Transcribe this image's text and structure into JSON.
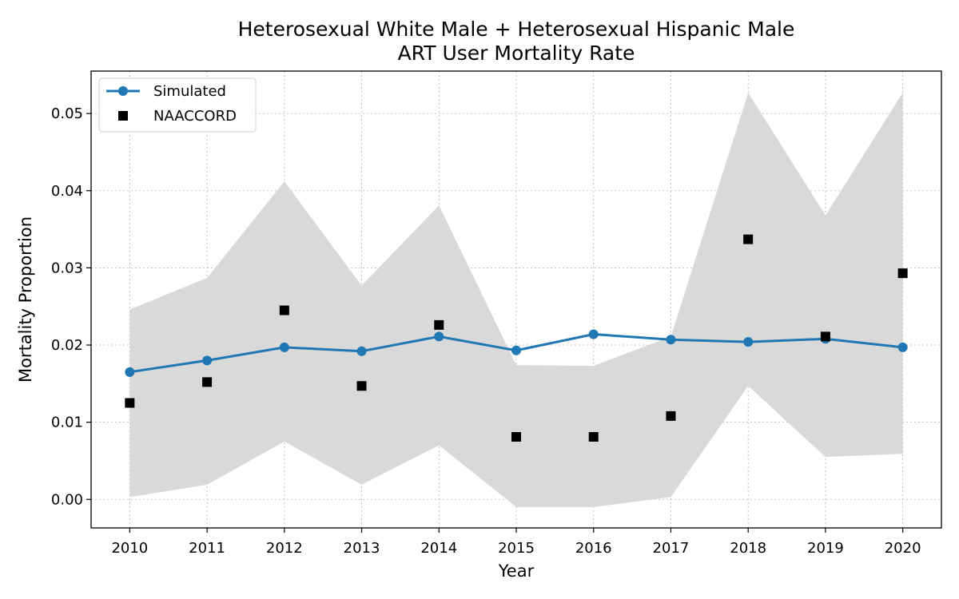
{
  "chart_data": {
    "type": "line",
    "title_line1": "Heterosexual White Male + Heterosexual Hispanic Male",
    "title_line2": "ART User Mortality Rate",
    "xlabel": "Year",
    "ylabel": "Mortality Proportion",
    "x": [
      2010,
      2011,
      2012,
      2013,
      2014,
      2015,
      2016,
      2017,
      2018,
      2019,
      2020
    ],
    "xlim": [
      2009.5,
      2020.5
    ],
    "ylim": [
      -0.0037,
      0.0555
    ],
    "y_ticks": [
      0.0,
      0.01,
      0.02,
      0.03,
      0.04,
      0.05
    ],
    "y_tick_labels": [
      "0.00",
      "0.01",
      "0.02",
      "0.03",
      "0.04",
      "0.05"
    ],
    "grid": true,
    "legend_position": "top-left",
    "series": [
      {
        "name": "Simulated",
        "kind": "line-marker",
        "color": "#1f77b4",
        "values": [
          0.0165,
          0.018,
          0.0197,
          0.0192,
          0.0211,
          0.0193,
          0.0214,
          0.0207,
          0.0204,
          0.0208,
          0.0197
        ],
        "band_lower": [
          0.0003,
          0.0019,
          0.0075,
          0.0019,
          0.007,
          -0.001,
          -0.001,
          0.0003,
          0.0147,
          0.0055,
          0.0059
        ],
        "band_upper": [
          0.0246,
          0.0287,
          0.0412,
          0.0277,
          0.0381,
          0.0174,
          0.0173,
          0.0211,
          0.0527,
          0.0368,
          0.0527
        ],
        "band_color": "#d9d9d9"
      },
      {
        "name": "NAACCORD",
        "kind": "marker",
        "color": "#000000",
        "values": [
          0.0125,
          0.0152,
          0.0245,
          0.0147,
          0.0226,
          0.0081,
          0.0081,
          0.0108,
          0.0337,
          0.0211,
          0.0293
        ]
      }
    ]
  }
}
